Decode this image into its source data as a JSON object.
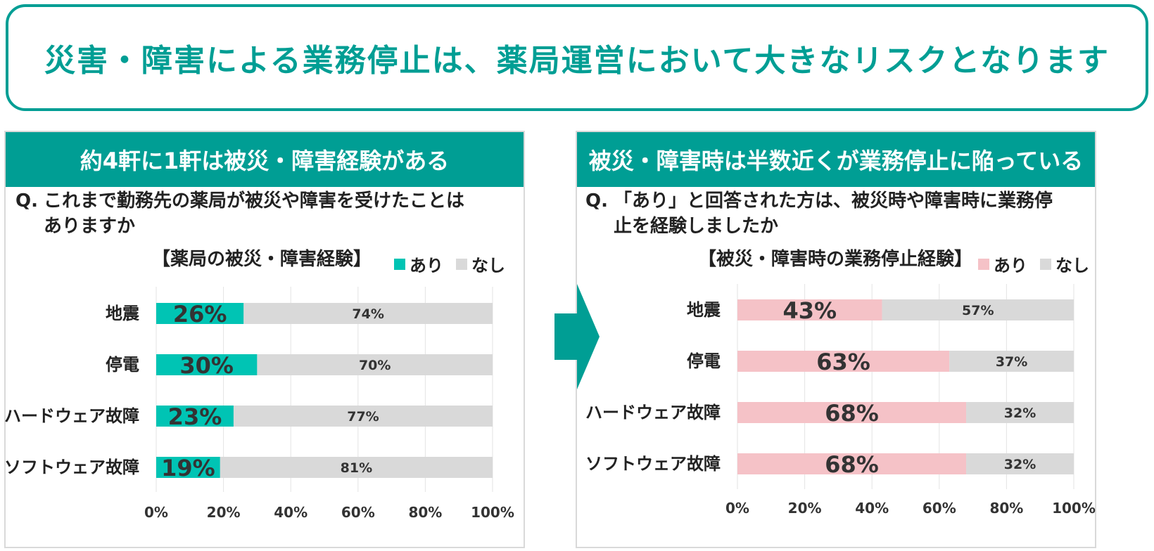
{
  "headline": "災害・障害による業務停止は、薬局運営において大きなリスクとなります",
  "colors": {
    "teal": "#009e94",
    "teal_bar": "#00c4b4",
    "pink_bar": "#f5c2c7",
    "grey_bar": "#d9d9d9"
  },
  "arrow_icon": "right-arrow-icon",
  "left_panel": {
    "header": "約4軒に1軒は被災・障害経験がある",
    "question_prefix": "Q.",
    "question_line1": "これまで勤務先の薬局が被災や障害を受けたことは",
    "question_line2": "ありますか",
    "chart_title": "【薬局の被災・障害経験】",
    "legend_yes": "あり",
    "legend_no": "なし"
  },
  "right_panel": {
    "header": "被災・障害時は半数近くが業務停止に陥っている",
    "question_prefix": "Q.",
    "question_line1": "「あり」と回答された方は、被災時や障害時に業務停",
    "question_line2": "止を経験しましたか",
    "chart_title": "【被災・障害時の業務停止経験】",
    "legend_yes": "あり",
    "legend_no": "なし"
  },
  "chart_data": [
    {
      "type": "bar",
      "orientation": "horizontal-stacked-100",
      "title": "【薬局の被災・障害経験】",
      "categories": [
        "地震",
        "停電",
        "ハードウェア故障",
        "ソフトウェア故障"
      ],
      "series": [
        {
          "name": "あり",
          "values": [
            26,
            30,
            23,
            19
          ],
          "color": "#00c4b4"
        },
        {
          "name": "なし",
          "values": [
            74,
            70,
            77,
            81
          ],
          "color": "#d9d9d9"
        }
      ],
      "value_labels_yes": [
        "26%",
        "30%",
        "23%",
        "19%"
      ],
      "value_labels_no": [
        "74%",
        "70%",
        "77%",
        "81%"
      ],
      "xlim": [
        0,
        100
      ],
      "xticks": [
        "0%",
        "20%",
        "40%",
        "60%",
        "80%",
        "100%"
      ],
      "grid": true,
      "legend": "top-right"
    },
    {
      "type": "bar",
      "orientation": "horizontal-stacked-100",
      "title": "【被災・障害時の業務停止経験】",
      "categories": [
        "地震",
        "停電",
        "ハードウェア故障",
        "ソフトウェア故障"
      ],
      "series": [
        {
          "name": "あり",
          "values": [
            43,
            63,
            68,
            68
          ],
          "color": "#f5c2c7"
        },
        {
          "name": "なし",
          "values": [
            57,
            37,
            32,
            32
          ],
          "color": "#d9d9d9"
        }
      ],
      "value_labels_yes": [
        "43%",
        "63%",
        "68%",
        "68%"
      ],
      "value_labels_no": [
        "57%",
        "37%",
        "32%",
        "32%"
      ],
      "xlim": [
        0,
        100
      ],
      "xticks": [
        "0%",
        "20%",
        "40%",
        "60%",
        "80%",
        "100%"
      ],
      "grid": true,
      "legend": "top-right"
    }
  ]
}
